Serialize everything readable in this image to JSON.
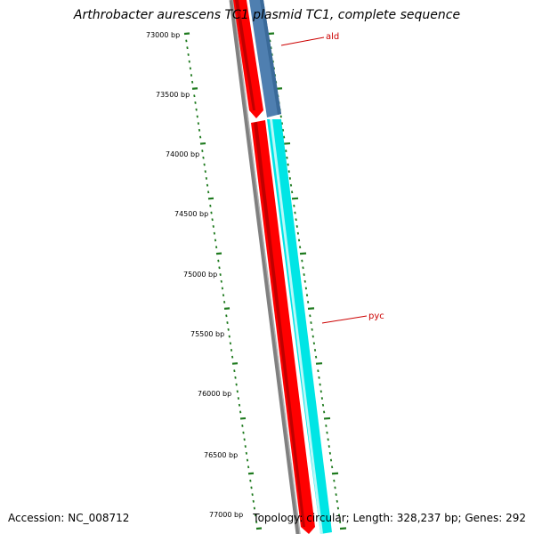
{
  "title": "Arthrobacter aurescens TC1 plasmid TC1, complete sequence",
  "footer": {
    "accession": "Accession: NC_008712",
    "summary": "Topology: circular; Length: 328,237 bp; Genes: 292"
  },
  "ruler": {
    "ticks": [
      {
        "label": "73000 bp"
      },
      {
        "label": "73500 bp"
      },
      {
        "label": "74000 bp"
      },
      {
        "label": "74500 bp"
      },
      {
        "label": "75000 bp"
      },
      {
        "label": "75500 bp"
      },
      {
        "label": "76000 bp"
      },
      {
        "label": "76500 bp"
      },
      {
        "label": "77000 bp"
      }
    ]
  },
  "genes": [
    {
      "label": "ald",
      "color": "#4f7fb0",
      "strand": "forward"
    },
    {
      "label": "pyc",
      "color": "#00e5e5",
      "strand": "forward"
    }
  ],
  "colors": {
    "backbone": "#808080",
    "reverse_track": "#ff0000",
    "ruler": "#1e7a1e",
    "label": "#cc0000"
  }
}
